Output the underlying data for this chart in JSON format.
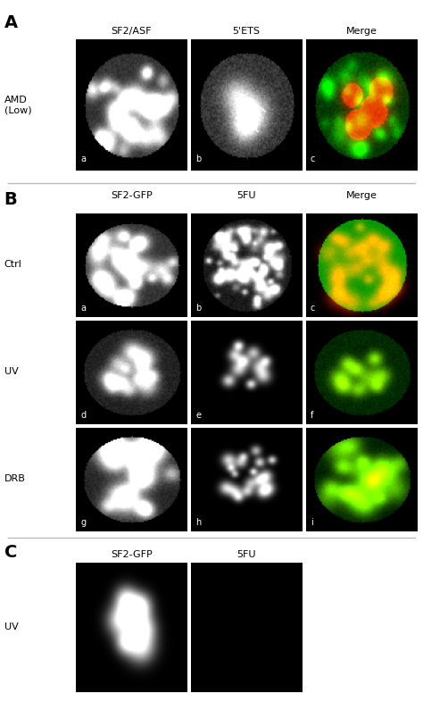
{
  "panel_A_label": "A",
  "panel_B_label": "B",
  "panel_C_label": "C",
  "panel_A_col_labels": [
    "SF2/ASF",
    "5'ETS",
    "Merge"
  ],
  "panel_B_col_labels": [
    "SF2-GFP",
    "5FU",
    "Merge"
  ],
  "panel_C_col_labels": [
    "SF2-GFP",
    "5FU"
  ],
  "panel_A_row_labels": [
    "AMD\n(Low)"
  ],
  "panel_B_row_labels": [
    "Ctrl",
    "UV",
    "DRB"
  ],
  "panel_C_row_labels": [
    "UV"
  ],
  "cell_labels_A": [
    "a",
    "b",
    "c"
  ],
  "cell_labels_B_row0": [
    "a",
    "b",
    "c"
  ],
  "cell_labels_B_row1": [
    "d",
    "e",
    "f"
  ],
  "cell_labels_B_row2": [
    "g",
    "h",
    "i"
  ],
  "bg_color": "#ffffff",
  "panel_bg": "#000000",
  "text_color": "#000000",
  "white_text": "#ffffff",
  "separator_color": "#bbbbbb",
  "panel_letter_size": 14,
  "col_label_size": 8,
  "row_label_size": 8,
  "cell_label_size": 7
}
